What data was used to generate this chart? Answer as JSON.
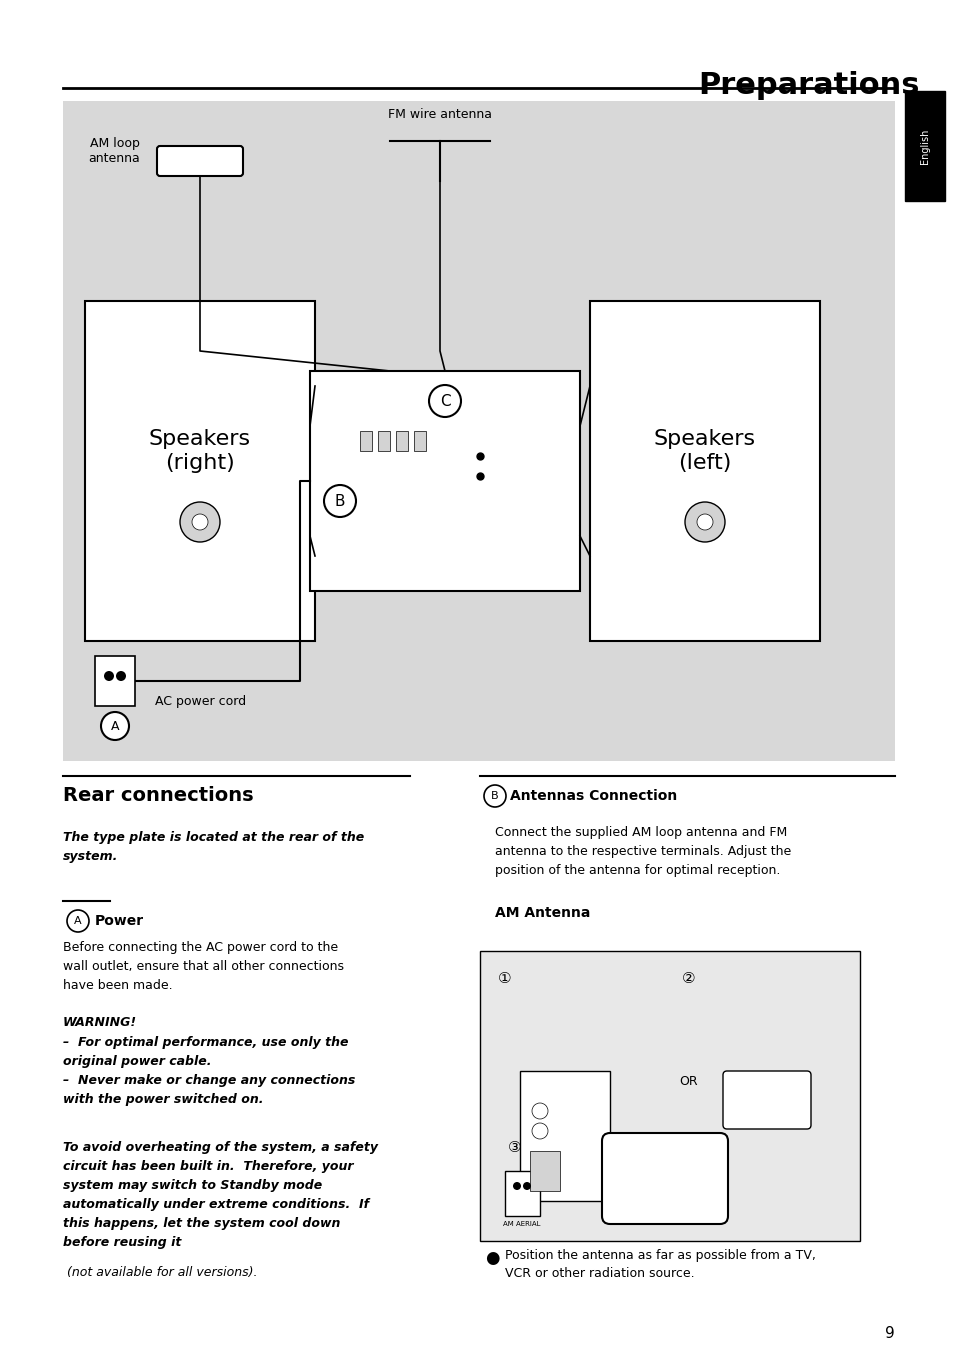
{
  "title": "Preparations",
  "page_number": "9",
  "bg_color": "#ffffff",
  "diagram_bg": "#d8d8d8",
  "section_title": "Rear connections",
  "section_subtitle": "The type plate is located at the rear of the\nsystem.",
  "subsection_A_title": "Power",
  "subsection_A_text": "Before connecting the AC power cord to the\nwall outlet, ensure that all other connections\nhave been made.",
  "warning_title": "WARNING!",
  "warning_text": "–  For optimal performance, use only the\noriginal power cable.\n–  Never make or change any connections\nwith the power switched on.",
  "italic_para": "To avoid overheating of the system, a safety\ncircuit has been built in.  Therefore, your\nsystem may switch to Standby mode\nautomatically under extreme conditions.  If\nthis happens, let the system cool down\nbefore reusing it",
  "italic_para_suffix": " (not available for all versions).",
  "subsection_B_title": "Antennas Connection",
  "subsection_B_text": "Connect the supplied AM loop antenna and FM\nantenna to the respective terminals. Adjust the\nposition of the antenna for optimal reception.",
  "AM_antenna_title": "AM Antenna",
  "bullet_text": "Position the antenna as far as possible from a TV,\nVCR or other radiation source.",
  "label_AM_loop": "AM loop\nantenna",
  "label_FM": "FM wire antenna",
  "label_speakers_right": "Speakers\n(right)",
  "label_speakers_left": "Speakers\n(left)",
  "label_AC": "AC power cord",
  "english_tab": "English"
}
